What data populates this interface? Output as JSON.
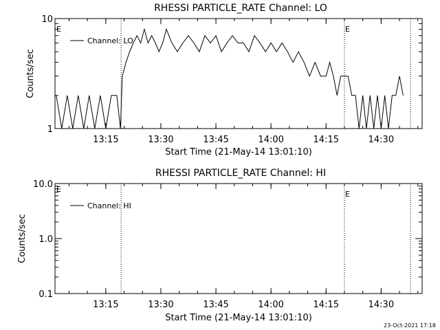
{
  "footer": {
    "timestamp": "23-Oct-2021 17:18"
  },
  "chart_data": [
    {
      "type": "line",
      "title": "RHESSI PARTICLE_RATE Channel: LO",
      "xlabel": "Start Time (21-May-14 13:01:10)",
      "ylabel": "Counts/sec",
      "yscale": "log",
      "ylim": [
        1,
        10
      ],
      "y_ticks": [
        1,
        10
      ],
      "y_tick_labels": [
        "1",
        "10"
      ],
      "xlim": [
        "13:01:10",
        "14:41:10"
      ],
      "x_ticks": [
        "13:15",
        "13:30",
        "13:45",
        "14:00",
        "14:15",
        "14:30"
      ],
      "legend": {
        "label": "Channel: LO",
        "position": "top-left"
      },
      "markers": [
        {
          "x": "13:19:10",
          "label": ""
        },
        {
          "x": "14:20:00",
          "label": "E"
        },
        {
          "x": "14:38:00",
          "label": ""
        }
      ],
      "corner_label": "E",
      "series": [
        {
          "x": [
            "13:01:30",
            "13:03:00",
            "13:04:30",
            "13:06:00",
            "13:07:30",
            "13:09:00",
            "13:10:30",
            "13:12:00",
            "13:13:30",
            "13:15:00",
            "13:16:30",
            "13:18:00",
            "13:19:00",
            "13:19:30",
            "13:20:30",
            "13:21:30",
            "13:22:30",
            "13:23:30",
            "13:24:30",
            "13:25:30",
            "13:26:30",
            "13:27:30",
            "13:28:30",
            "13:29:30",
            "13:30:30",
            "13:31:30",
            "13:33:00",
            "13:34:30",
            "13:36:00",
            "13:37:30",
            "13:39:00",
            "13:40:30",
            "13:42:00",
            "13:43:30",
            "13:45:00",
            "13:46:30",
            "13:48:00",
            "13:49:30",
            "13:51:00",
            "13:52:30",
            "13:54:00",
            "13:55:30",
            "13:57:00",
            "13:58:30",
            "14:00:00",
            "14:01:30",
            "14:03:00",
            "14:04:30",
            "14:06:00",
            "14:07:30",
            "14:09:00",
            "14:10:30",
            "14:12:00",
            "14:13:30",
            "14:15:00",
            "14:16:00",
            "14:17:00",
            "14:18:00",
            "14:19:00",
            "14:20:00",
            "14:21:00",
            "14:22:00",
            "14:23:00",
            "14:24:00",
            "14:25:00",
            "14:26:00",
            "14:27:00",
            "14:28:00",
            "14:29:00",
            "14:30:00",
            "14:31:00",
            "14:32:00",
            "14:33:00",
            "14:34:00",
            "14:35:00",
            "14:36:00"
          ],
          "values": [
            2,
            1,
            2,
            1,
            2,
            1,
            2,
            1,
            2,
            1,
            2,
            2,
            1,
            3,
            4,
            5,
            6,
            7,
            6,
            8,
            6,
            7,
            6,
            5,
            6,
            8,
            6,
            5,
            6,
            7,
            6,
            5,
            7,
            6,
            7,
            5,
            6,
            7,
            6,
            6,
            5,
            7,
            6,
            5,
            6,
            5,
            6,
            5,
            4,
            5,
            4,
            3,
            4,
            3,
            3,
            4,
            3,
            2,
            3,
            3,
            3,
            2,
            2,
            1,
            2,
            1,
            2,
            1,
            2,
            1,
            2,
            1,
            2,
            2,
            3,
            2
          ]
        }
      ]
    },
    {
      "type": "line",
      "title": "RHESSI PARTICLE_RATE Channel: HI",
      "xlabel": "Start Time (21-May-14 13:01:10)",
      "ylabel": "Counts/sec",
      "yscale": "log",
      "ylim": [
        0.1,
        10
      ],
      "y_ticks": [
        0.1,
        1,
        10
      ],
      "y_tick_labels": [
        "0.1",
        "1.0",
        "10.0"
      ],
      "xlim": [
        "13:01:10",
        "14:41:10"
      ],
      "x_ticks": [
        "13:15",
        "13:30",
        "13:45",
        "14:00",
        "14:15",
        "14:30"
      ],
      "legend": {
        "label": "Channel: HI",
        "position": "top-left"
      },
      "markers": [
        {
          "x": "13:19:10",
          "label": ""
        },
        {
          "x": "14:20:00",
          "label": "E"
        },
        {
          "x": "14:38:00",
          "label": ""
        }
      ],
      "corner_label": "E",
      "series": [
        {
          "x": [],
          "values": []
        }
      ]
    }
  ]
}
